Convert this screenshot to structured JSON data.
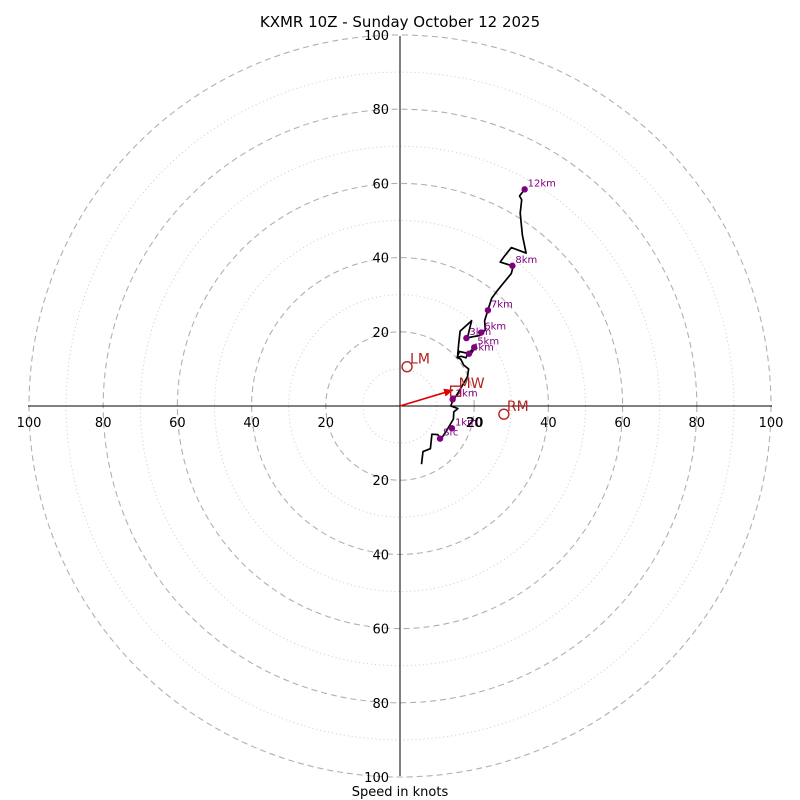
{
  "chart_data": {
    "type": "hodograph",
    "title": "KXMR 10Z - Sunday October 12 2025",
    "xlabel": "Speed in knots",
    "axis_range": [
      -100,
      100
    ],
    "tick_values": [
      100,
      80,
      60,
      40,
      20
    ],
    "center_tick_label": "20",
    "major_rings": [
      20,
      40,
      60,
      80,
      100
    ],
    "minor_rings": [
      10,
      30,
      50,
      70,
      90
    ],
    "colors": {
      "trace": "#000000",
      "points": "#800080",
      "motion": "#b22222",
      "arrow": "#e00000",
      "major_ring": "#b0b0b0",
      "minor_ring": "#cccccc"
    },
    "trace": [
      [
        5.8,
        -15.7
      ],
      [
        6.2,
        -12.3
      ],
      [
        8.2,
        -11.5
      ],
      [
        8.6,
        -7.6
      ],
      [
        10.2,
        -7.7
      ],
      [
        11.0,
        -9.0
      ],
      [
        12.5,
        -6.7
      ],
      [
        14.4,
        -3.5
      ],
      [
        14.5,
        -1.6
      ],
      [
        15.6,
        -0.7
      ],
      [
        13.7,
        0.0
      ],
      [
        14.5,
        2.2
      ],
      [
        14.0,
        1.0
      ],
      [
        15.8,
        3.8
      ],
      [
        18.2,
        7.9
      ],
      [
        18.5,
        10.0
      ],
      [
        17.2,
        11.0
      ],
      [
        16.4,
        12.6
      ],
      [
        15.4,
        13.1
      ],
      [
        16.0,
        14.7
      ],
      [
        18.7,
        14.1
      ],
      [
        19.0,
        13.8
      ],
      [
        19.3,
        14.3
      ],
      [
        20.2,
        15.8
      ],
      [
        18.2,
        14.1
      ],
      [
        17.8,
        13.0
      ],
      [
        16.5,
        13.4
      ],
      [
        15.5,
        13.1
      ],
      [
        15.8,
        16.5
      ],
      [
        16.2,
        20.2
      ],
      [
        19.3,
        23.0
      ],
      [
        18.2,
        18.4
      ],
      [
        21.5,
        19.0
      ],
      [
        23.0,
        20.5
      ],
      [
        22.8,
        23.0
      ],
      [
        23.7,
        25.8
      ],
      [
        24.7,
        29.0
      ],
      [
        26.0,
        30.8
      ],
      [
        28.0,
        33.3
      ],
      [
        30.0,
        35.7
      ],
      [
        30.5,
        37.7
      ],
      [
        27.0,
        38.8
      ],
      [
        28.0,
        40.2
      ],
      [
        30.0,
        42.7
      ],
      [
        34.0,
        41.2
      ],
      [
        33.0,
        46.0
      ],
      [
        32.4,
        52.0
      ],
      [
        32.8,
        55.6
      ],
      [
        32.2,
        56.6
      ],
      [
        33.6,
        58.4
      ]
    ],
    "height_points": [
      {
        "label": "Sfc",
        "u": 10.8,
        "v": -8.8
      },
      {
        "label": "1km",
        "u": 14.0,
        "v": -6.0
      },
      {
        "label": "2km",
        "u": 14.2,
        "v": 1.8
      },
      {
        "label": "3km",
        "u": 17.9,
        "v": 18.3
      },
      {
        "label": "4km",
        "u": 18.6,
        "v": 14.1
      },
      {
        "label": "5km",
        "u": 20.0,
        "v": 15.8
      },
      {
        "label": "6km",
        "u": 21.9,
        "v": 19.8
      },
      {
        "label": "7km",
        "u": 23.7,
        "v": 25.8
      },
      {
        "label": "8km",
        "u": 30.3,
        "v": 37.8
      },
      {
        "label": "12km",
        "u": 33.6,
        "v": 58.4
      }
    ],
    "storm_motion": [
      {
        "label": "LM",
        "u": 1.9,
        "v": 10.6
      },
      {
        "label": "RM",
        "u": 28.0,
        "v": -2.2
      },
      {
        "label": "MW",
        "u": 15.0,
        "v": 4.0
      }
    ],
    "mean_wind_arrow": {
      "u": 14.3,
      "v": 4.3
    }
  }
}
